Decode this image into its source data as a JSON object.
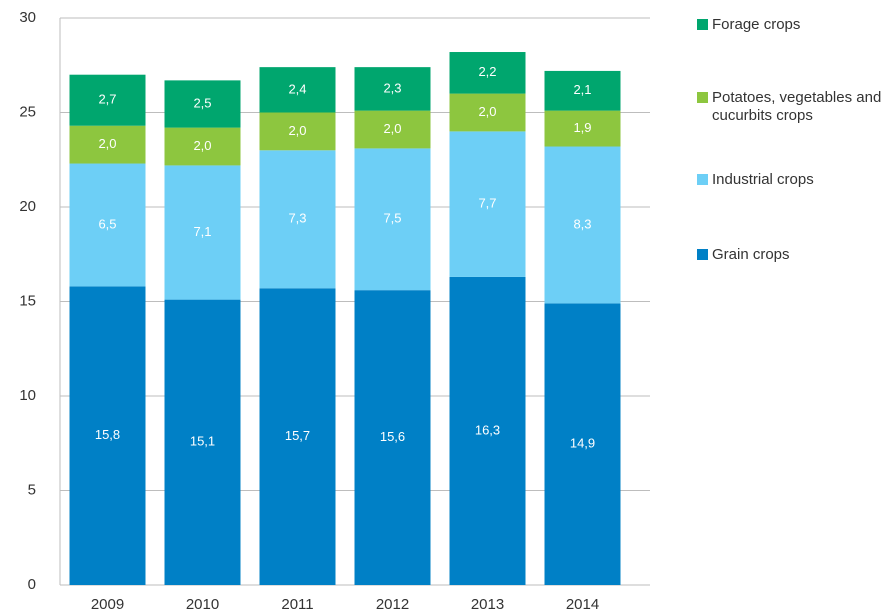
{
  "chart_data": {
    "type": "stacked_bar",
    "categories": [
      "2009",
      "2010",
      "2011",
      "2012",
      "2013",
      "2014"
    ],
    "series": [
      {
        "name": "Grain crops",
        "color": "#0080c6",
        "values": [
          15.8,
          15.1,
          15.7,
          15.6,
          16.3,
          14.9
        ],
        "value_labels": [
          "15,8",
          "15,1",
          "15,7",
          "15,6",
          "16,3",
          "14,9"
        ]
      },
      {
        "name": "Industrial crops",
        "color": "#6dcff6",
        "values": [
          6.5,
          7.1,
          7.3,
          7.5,
          7.7,
          8.3
        ],
        "value_labels": [
          "6,5",
          "7,1",
          "7,3",
          "7,5",
          "7,7",
          "8,3"
        ]
      },
      {
        "name": "Potatoes, vegetables and cucurbits crops",
        "color": "#8dc63f",
        "values": [
          2.0,
          2.0,
          2.0,
          2.0,
          2.0,
          1.9
        ],
        "value_labels": [
          "2,0",
          "2,0",
          "2,0",
          "2,0",
          "2,0",
          "1,9"
        ]
      },
      {
        "name": "Forage crops",
        "color": "#00a66e",
        "values": [
          2.7,
          2.5,
          2.4,
          2.3,
          2.2,
          2.1
        ],
        "value_labels": [
          "2,7",
          "2,5",
          "2,4",
          "2,3",
          "2,2",
          "2,1"
        ]
      }
    ],
    "ylim": [
      0,
      30
    ],
    "yticks": [
      0,
      5,
      10,
      15,
      20,
      25,
      30
    ],
    "grid": true
  }
}
